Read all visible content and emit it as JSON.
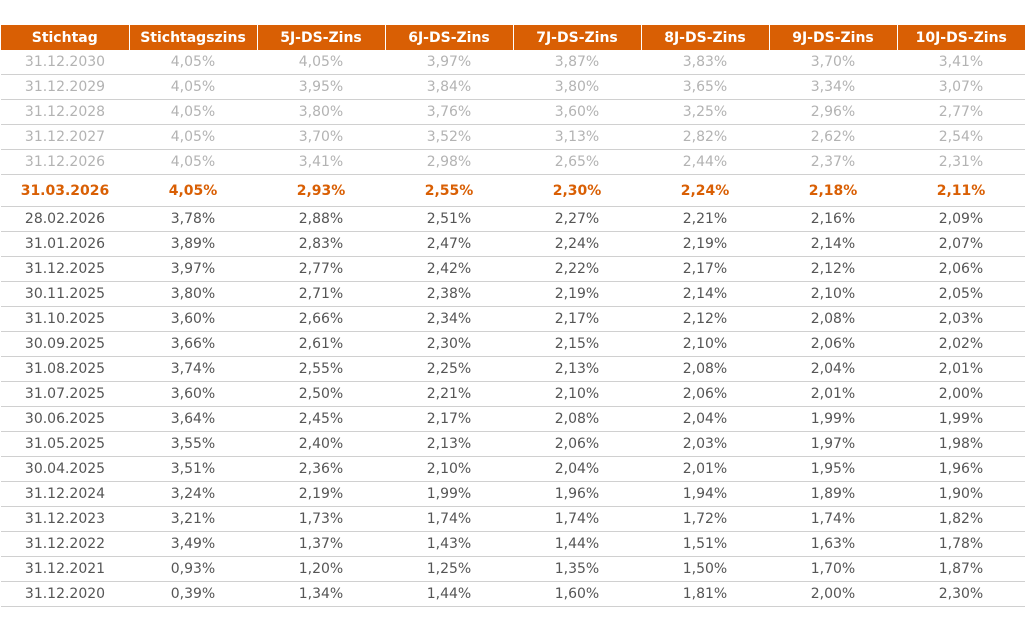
{
  "colors": {
    "header_bg": "#d95f04",
    "highlight": "#d95f04",
    "future_text": "#b3b3b3",
    "normal_text": "#555555"
  },
  "table": {
    "headers": [
      "Stichtag",
      "Stichtagszins",
      "5J-DS-Zins",
      "6J-DS-Zins",
      "7J-DS-Zins",
      "8J-DS-Zins",
      "9J-DS-Zins",
      "10J-DS-Zins"
    ],
    "rows": [
      {
        "status": "future",
        "cells": [
          "31.12.2030",
          "4,05%",
          "4,05%",
          "3,97%",
          "3,87%",
          "3,83%",
          "3,70%",
          "3,41%"
        ]
      },
      {
        "status": "future",
        "cells": [
          "31.12.2029",
          "4,05%",
          "3,95%",
          "3,84%",
          "3,80%",
          "3,65%",
          "3,34%",
          "3,07%"
        ]
      },
      {
        "status": "future",
        "cells": [
          "31.12.2028",
          "4,05%",
          "3,80%",
          "3,76%",
          "3,60%",
          "3,25%",
          "2,96%",
          "2,77%"
        ]
      },
      {
        "status": "future",
        "cells": [
          "31.12.2027",
          "4,05%",
          "3,70%",
          "3,52%",
          "3,13%",
          "2,82%",
          "2,62%",
          "2,54%"
        ]
      },
      {
        "status": "future",
        "cells": [
          "31.12.2026",
          "4,05%",
          "3,41%",
          "2,98%",
          "2,65%",
          "2,44%",
          "2,37%",
          "2,31%"
        ]
      },
      {
        "status": "current",
        "cells": [
          "31.03.2026",
          "4,05%",
          "2,93%",
          "2,55%",
          "2,30%",
          "2,24%",
          "2,18%",
          "2,11%"
        ]
      },
      {
        "status": "past",
        "cells": [
          "28.02.2026",
          "3,78%",
          "2,88%",
          "2,51%",
          "2,27%",
          "2,21%",
          "2,16%",
          "2,09%"
        ]
      },
      {
        "status": "past",
        "cells": [
          "31.01.2026",
          "3,89%",
          "2,83%",
          "2,47%",
          "2,24%",
          "2,19%",
          "2,14%",
          "2,07%"
        ]
      },
      {
        "status": "past",
        "cells": [
          "31.12.2025",
          "3,97%",
          "2,77%",
          "2,42%",
          "2,22%",
          "2,17%",
          "2,12%",
          "2,06%"
        ]
      },
      {
        "status": "past",
        "cells": [
          "30.11.2025",
          "3,80%",
          "2,71%",
          "2,38%",
          "2,19%",
          "2,14%",
          "2,10%",
          "2,05%"
        ]
      },
      {
        "status": "past",
        "cells": [
          "31.10.2025",
          "3,60%",
          "2,66%",
          "2,34%",
          "2,17%",
          "2,12%",
          "2,08%",
          "2,03%"
        ]
      },
      {
        "status": "past",
        "cells": [
          "30.09.2025",
          "3,66%",
          "2,61%",
          "2,30%",
          "2,15%",
          "2,10%",
          "2,06%",
          "2,02%"
        ]
      },
      {
        "status": "past",
        "cells": [
          "31.08.2025",
          "3,74%",
          "2,55%",
          "2,25%",
          "2,13%",
          "2,08%",
          "2,04%",
          "2,01%"
        ]
      },
      {
        "status": "past",
        "cells": [
          "31.07.2025",
          "3,60%",
          "2,50%",
          "2,21%",
          "2,10%",
          "2,06%",
          "2,01%",
          "2,00%"
        ]
      },
      {
        "status": "past",
        "cells": [
          "30.06.2025",
          "3,64%",
          "2,45%",
          "2,17%",
          "2,08%",
          "2,04%",
          "1,99%",
          "1,99%"
        ]
      },
      {
        "status": "past",
        "cells": [
          "31.05.2025",
          "3,55%",
          "2,40%",
          "2,13%",
          "2,06%",
          "2,03%",
          "1,97%",
          "1,98%"
        ]
      },
      {
        "status": "past",
        "cells": [
          "30.04.2025",
          "3,51%",
          "2,36%",
          "2,10%",
          "2,04%",
          "2,01%",
          "1,95%",
          "1,96%"
        ]
      },
      {
        "status": "past",
        "cells": [
          "31.12.2024",
          "3,24%",
          "2,19%",
          "1,99%",
          "1,96%",
          "1,94%",
          "1,89%",
          "1,90%"
        ]
      },
      {
        "status": "past",
        "cells": [
          "31.12.2023",
          "3,21%",
          "1,73%",
          "1,74%",
          "1,74%",
          "1,72%",
          "1,74%",
          "1,82%"
        ]
      },
      {
        "status": "past",
        "cells": [
          "31.12.2022",
          "3,49%",
          "1,37%",
          "1,43%",
          "1,44%",
          "1,51%",
          "1,63%",
          "1,78%"
        ]
      },
      {
        "status": "past",
        "cells": [
          "31.12.2021",
          "0,93%",
          "1,20%",
          "1,25%",
          "1,35%",
          "1,50%",
          "1,70%",
          "1,87%"
        ]
      },
      {
        "status": "past",
        "cells": [
          "31.12.2020",
          "0,39%",
          "1,34%",
          "1,44%",
          "1,60%",
          "1,81%",
          "2,00%",
          "2,30%"
        ]
      }
    ]
  }
}
